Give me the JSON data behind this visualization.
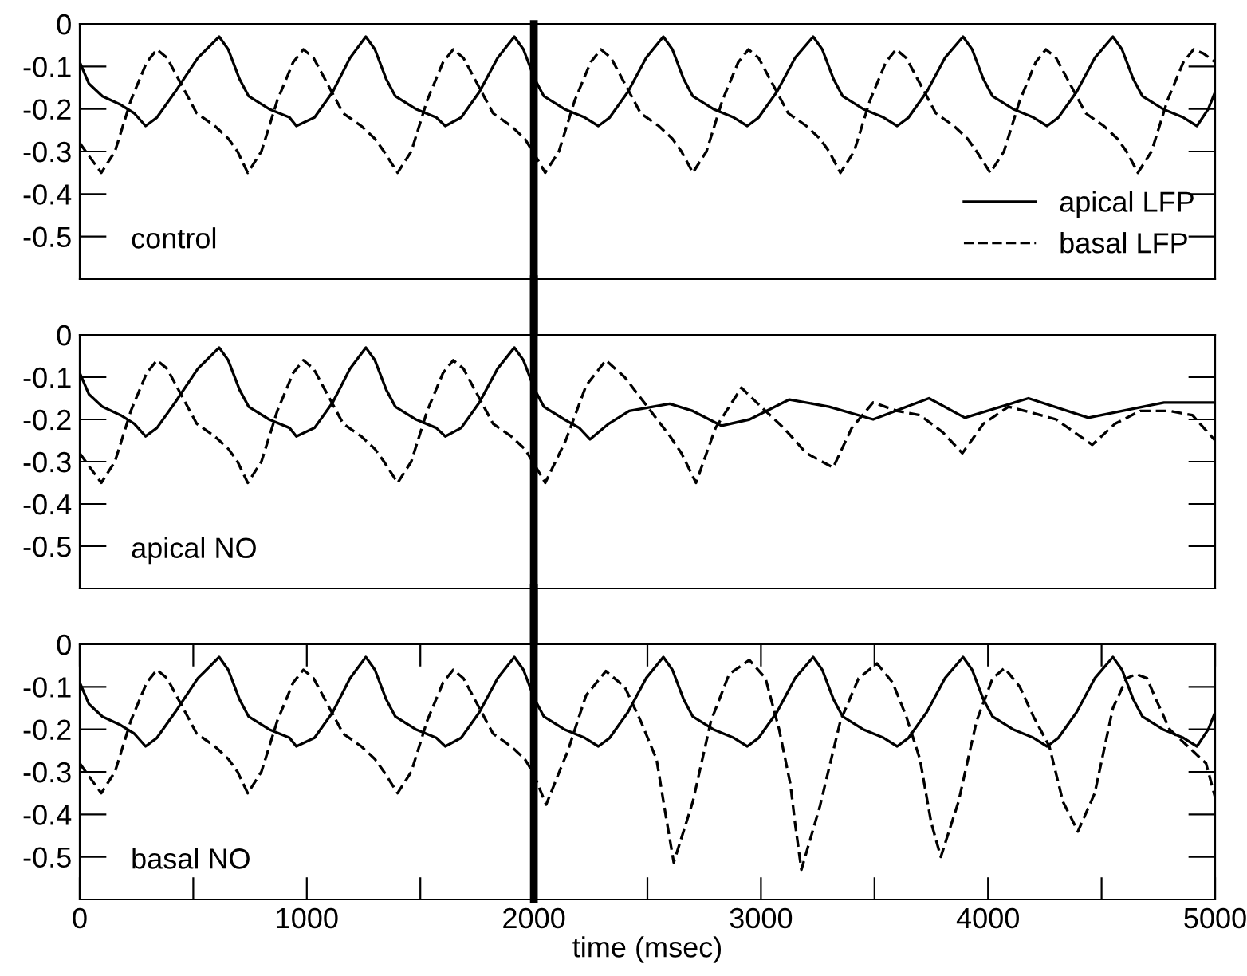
{
  "chart_data": [
    {
      "type": "line",
      "xlim": [
        0,
        5000
      ],
      "ylim": [
        -0.6,
        0
      ],
      "yticks": [
        0,
        -0.1,
        -0.2,
        -0.3,
        -0.4,
        -0.5
      ],
      "tick_labels": "y",
      "legend": "bottom right",
      "annotations": [
        "control"
      ],
      "ref_lines": [
        {
          "axis": "x",
          "value": 2000,
          "color": "#000000"
        }
      ],
      "series": [
        {
          "name": "apical LFP",
          "color": "#000000",
          "line_style": "solid",
          "x": [
            0,
            40,
            100,
            180,
            240,
            290,
            340,
            420,
            520,
            614,
            654,
            704,
            744,
            834,
            924,
            954,
            1034,
            1114,
            1190,
            1260,
            1300,
            1350,
            1390,
            1480,
            1570,
            1610,
            1680,
            1760,
            1840,
            1914,
            1954,
            2004,
            2044,
            2134,
            2224,
            2284,
            2334,
            2414,
            2494,
            2570,
            2610,
            2660,
            2700,
            2790,
            2880,
            2940,
            2990,
            3070,
            3150,
            3230,
            3270,
            3320,
            3360,
            3450,
            3540,
            3600,
            3650,
            3730,
            3810,
            3890,
            3930,
            3980,
            4020,
            4110,
            4200,
            4260,
            4310,
            4390,
            4470,
            4550,
            4590,
            4640,
            4680,
            4770,
            4860,
            4920,
            4970,
            5000
          ],
          "values": [
            -0.09,
            -0.14,
            -0.17,
            -0.19,
            -0.21,
            -0.24,
            -0.22,
            -0.16,
            -0.08,
            -0.03,
            -0.06,
            -0.13,
            -0.17,
            -0.2,
            -0.22,
            -0.24,
            -0.22,
            -0.16,
            -0.08,
            -0.03,
            -0.06,
            -0.13,
            -0.17,
            -0.2,
            -0.22,
            -0.24,
            -0.22,
            -0.16,
            -0.08,
            -0.03,
            -0.06,
            -0.13,
            -0.17,
            -0.2,
            -0.22,
            -0.24,
            -0.22,
            -0.16,
            -0.08,
            -0.03,
            -0.06,
            -0.13,
            -0.17,
            -0.2,
            -0.22,
            -0.24,
            -0.22,
            -0.16,
            -0.08,
            -0.03,
            -0.06,
            -0.13,
            -0.17,
            -0.2,
            -0.22,
            -0.24,
            -0.22,
            -0.16,
            -0.08,
            -0.03,
            -0.06,
            -0.13,
            -0.17,
            -0.2,
            -0.22,
            -0.24,
            -0.22,
            -0.16,
            -0.08,
            -0.03,
            -0.06,
            -0.13,
            -0.17,
            -0.2,
            -0.22,
            -0.24,
            -0.2,
            -0.16
          ]
        },
        {
          "name": "basal LFP",
          "color": "#000000",
          "line_style": "dashed",
          "x": [
            0,
            40,
            95,
            155,
            225,
            295,
            340,
            385,
            455,
            515,
            595,
            655,
            695,
            740,
            800,
            870,
            940,
            985,
            1030,
            1100,
            1160,
            1240,
            1300,
            1340,
            1400,
            1460,
            1530,
            1600,
            1645,
            1690,
            1760,
            1820,
            1900,
            1960,
            1995,
            2050,
            2110,
            2180,
            2250,
            2295,
            2340,
            2410,
            2470,
            2550,
            2610,
            2650,
            2700,
            2760,
            2830,
            2900,
            2945,
            2990,
            3060,
            3120,
            3200,
            3260,
            3300,
            3350,
            3410,
            3480,
            3550,
            3595,
            3640,
            3710,
            3770,
            3850,
            3910,
            3950,
            4010,
            4070,
            4140,
            4210,
            4255,
            4300,
            4370,
            4430,
            4510,
            4570,
            4610,
            4660,
            4720,
            4790,
            4860,
            4905,
            4950,
            5000
          ],
          "values": [
            -0.28,
            -0.31,
            -0.35,
            -0.3,
            -0.18,
            -0.09,
            -0.06,
            -0.08,
            -0.15,
            -0.21,
            -0.24,
            -0.27,
            -0.3,
            -0.35,
            -0.3,
            -0.18,
            -0.09,
            -0.06,
            -0.08,
            -0.15,
            -0.21,
            -0.24,
            -0.27,
            -0.3,
            -0.35,
            -0.3,
            -0.18,
            -0.09,
            -0.06,
            -0.08,
            -0.15,
            -0.21,
            -0.24,
            -0.27,
            -0.3,
            -0.35,
            -0.3,
            -0.18,
            -0.09,
            -0.06,
            -0.08,
            -0.15,
            -0.21,
            -0.24,
            -0.27,
            -0.3,
            -0.35,
            -0.3,
            -0.18,
            -0.09,
            -0.06,
            -0.08,
            -0.15,
            -0.21,
            -0.24,
            -0.27,
            -0.3,
            -0.35,
            -0.3,
            -0.18,
            -0.09,
            -0.06,
            -0.08,
            -0.15,
            -0.21,
            -0.24,
            -0.27,
            -0.3,
            -0.35,
            -0.3,
            -0.18,
            -0.09,
            -0.06,
            -0.08,
            -0.15,
            -0.21,
            -0.24,
            -0.27,
            -0.3,
            -0.35,
            -0.3,
            -0.18,
            -0.09,
            -0.06,
            -0.07,
            -0.09
          ]
        }
      ]
    },
    {
      "type": "line",
      "xlim": [
        0,
        5000
      ],
      "ylim": [
        -0.6,
        0
      ],
      "yticks": [
        0,
        -0.1,
        -0.2,
        -0.3,
        -0.4,
        -0.5
      ],
      "tick_labels": "y",
      "annotations": [
        "apical NO"
      ],
      "ref_lines": [
        {
          "axis": "x",
          "value": 2000,
          "color": "#000000"
        }
      ],
      "series": [
        {
          "color": "#000000",
          "line_style": "solid",
          "x": [
            0,
            40,
            100,
            180,
            240,
            290,
            340,
            420,
            520,
            614,
            654,
            704,
            744,
            834,
            924,
            954,
            1034,
            1114,
            1190,
            1260,
            1300,
            1350,
            1390,
            1480,
            1570,
            1610,
            1680,
            1760,
            1840,
            1914,
            1954,
            2004,
            2044,
            2134,
            2200,
            2247,
            2330,
            2420,
            2598,
            2700,
            2827,
            2950,
            3125,
            3300,
            3494,
            3740,
            3898,
            4178,
            4442,
            4775,
            5000
          ],
          "values": [
            -0.09,
            -0.14,
            -0.17,
            -0.19,
            -0.21,
            -0.24,
            -0.22,
            -0.16,
            -0.08,
            -0.03,
            -0.06,
            -0.13,
            -0.17,
            -0.2,
            -0.22,
            -0.24,
            -0.22,
            -0.16,
            -0.08,
            -0.03,
            -0.06,
            -0.13,
            -0.17,
            -0.2,
            -0.22,
            -0.24,
            -0.22,
            -0.16,
            -0.08,
            -0.03,
            -0.06,
            -0.13,
            -0.17,
            -0.2,
            -0.22,
            -0.247,
            -0.21,
            -0.18,
            -0.163,
            -0.18,
            -0.215,
            -0.2,
            -0.153,
            -0.17,
            -0.2,
            -0.15,
            -0.196,
            -0.15,
            -0.196,
            -0.16,
            -0.16
          ]
        },
        {
          "color": "#000000",
          "line_style": "dashed",
          "x": [
            0,
            40,
            95,
            155,
            225,
            295,
            340,
            385,
            455,
            515,
            595,
            655,
            695,
            740,
            800,
            870,
            940,
            985,
            1030,
            1100,
            1160,
            1240,
            1300,
            1340,
            1400,
            1460,
            1530,
            1600,
            1645,
            1690,
            1760,
            1820,
            1900,
            1960,
            1995,
            2050,
            2140,
            2230,
            2317,
            2400,
            2500,
            2600,
            2650,
            2714,
            2800,
            2914,
            3000,
            3100,
            3200,
            3318,
            3400,
            3494,
            3600,
            3700,
            3800,
            3887,
            3980,
            4090,
            4200,
            4300,
            4459,
            4560,
            4670,
            4800,
            4900,
            5000
          ],
          "values": [
            -0.28,
            -0.31,
            -0.35,
            -0.3,
            -0.18,
            -0.09,
            -0.06,
            -0.08,
            -0.15,
            -0.21,
            -0.24,
            -0.27,
            -0.3,
            -0.35,
            -0.3,
            -0.18,
            -0.09,
            -0.06,
            -0.08,
            -0.15,
            -0.21,
            -0.24,
            -0.27,
            -0.3,
            -0.35,
            -0.3,
            -0.18,
            -0.09,
            -0.06,
            -0.08,
            -0.15,
            -0.21,
            -0.24,
            -0.27,
            -0.3,
            -0.35,
            -0.25,
            -0.12,
            -0.06,
            -0.1,
            -0.17,
            -0.24,
            -0.28,
            -0.35,
            -0.22,
            -0.125,
            -0.17,
            -0.22,
            -0.28,
            -0.314,
            -0.22,
            -0.16,
            -0.18,
            -0.19,
            -0.23,
            -0.28,
            -0.21,
            -0.17,
            -0.185,
            -0.2,
            -0.26,
            -0.21,
            -0.18,
            -0.18,
            -0.19,
            -0.25
          ]
        }
      ]
    },
    {
      "type": "line",
      "xlim": [
        0,
        5000
      ],
      "ylim": [
        -0.6,
        0
      ],
      "yticks": [
        0,
        -0.1,
        -0.2,
        -0.3,
        -0.4,
        -0.5
      ],
      "xticks": [
        0,
        {
          "value": 500,
          "label": null
        },
        1000,
        {
          "value": 1500,
          "label": null
        },
        2000,
        {
          "value": 2500,
          "label": null
        },
        3000,
        {
          "value": 3500,
          "label": null
        },
        4000,
        {
          "value": 4500,
          "label": null
        },
        5000
      ],
      "xlabel": "time (msec)",
      "annotations": [
        "basal NO"
      ],
      "ref_lines": [
        {
          "axis": "x",
          "value": 2000,
          "color": "#000000"
        }
      ],
      "series": [
        {
          "color": "#000000",
          "line_style": "solid",
          "x": [
            0,
            40,
            100,
            180,
            240,
            290,
            340,
            420,
            520,
            614,
            654,
            704,
            744,
            834,
            924,
            954,
            1034,
            1114,
            1190,
            1260,
            1300,
            1350,
            1390,
            1480,
            1570,
            1610,
            1680,
            1760,
            1840,
            1914,
            1954,
            2004,
            2044,
            2134,
            2224,
            2284,
            2334,
            2414,
            2494,
            2570,
            2610,
            2660,
            2700,
            2790,
            2880,
            2940,
            2990,
            3070,
            3150,
            3230,
            3270,
            3320,
            3360,
            3450,
            3540,
            3600,
            3650,
            3730,
            3810,
            3890,
            3930,
            3980,
            4020,
            4110,
            4200,
            4260,
            4310,
            4390,
            4470,
            4550,
            4590,
            4640,
            4680,
            4770,
            4860,
            4920,
            4970,
            5000
          ],
          "values": [
            -0.09,
            -0.14,
            -0.17,
            -0.19,
            -0.21,
            -0.24,
            -0.22,
            -0.16,
            -0.08,
            -0.03,
            -0.06,
            -0.13,
            -0.17,
            -0.2,
            -0.22,
            -0.24,
            -0.22,
            -0.16,
            -0.08,
            -0.03,
            -0.06,
            -0.13,
            -0.17,
            -0.2,
            -0.22,
            -0.24,
            -0.22,
            -0.16,
            -0.08,
            -0.03,
            -0.06,
            -0.13,
            -0.17,
            -0.2,
            -0.22,
            -0.24,
            -0.22,
            -0.16,
            -0.08,
            -0.03,
            -0.06,
            -0.13,
            -0.17,
            -0.2,
            -0.22,
            -0.24,
            -0.22,
            -0.16,
            -0.08,
            -0.03,
            -0.06,
            -0.13,
            -0.17,
            -0.2,
            -0.22,
            -0.24,
            -0.22,
            -0.16,
            -0.08,
            -0.03,
            -0.06,
            -0.13,
            -0.17,
            -0.2,
            -0.22,
            -0.24,
            -0.22,
            -0.16,
            -0.08,
            -0.03,
            -0.06,
            -0.13,
            -0.17,
            -0.2,
            -0.22,
            -0.24,
            -0.2,
            -0.16
          ]
        },
        {
          "color": "#000000",
          "line_style": "dashed",
          "x": [
            0,
            40,
            95,
            155,
            225,
            295,
            340,
            385,
            455,
            515,
            595,
            655,
            695,
            740,
            800,
            870,
            940,
            985,
            1030,
            1100,
            1160,
            1240,
            1300,
            1340,
            1400,
            1460,
            1530,
            1600,
            1645,
            1690,
            1760,
            1820,
            1900,
            1960,
            1995,
            2054,
            2150,
            2230,
            2317,
            2400,
            2470,
            2540,
            2580,
            2616,
            2700,
            2780,
            2860,
            2949,
            3020,
            3080,
            3130,
            3150,
            3178,
            3260,
            3350,
            3430,
            3511,
            3580,
            3640,
            3700,
            3750,
            3792,
            3870,
            3950,
            4020,
            4073,
            4140,
            4200,
            4270,
            4330,
            4396,
            4470,
            4550,
            4610,
            4652,
            4700,
            4740,
            4800,
            4900,
            4960,
            5000
          ],
          "values": [
            -0.28,
            -0.31,
            -0.35,
            -0.3,
            -0.18,
            -0.09,
            -0.06,
            -0.08,
            -0.15,
            -0.21,
            -0.24,
            -0.27,
            -0.3,
            -0.35,
            -0.3,
            -0.18,
            -0.09,
            -0.06,
            -0.08,
            -0.15,
            -0.21,
            -0.24,
            -0.27,
            -0.3,
            -0.35,
            -0.3,
            -0.18,
            -0.09,
            -0.06,
            -0.08,
            -0.15,
            -0.21,
            -0.24,
            -0.27,
            -0.3,
            -0.377,
            -0.25,
            -0.12,
            -0.063,
            -0.1,
            -0.18,
            -0.27,
            -0.4,
            -0.513,
            -0.37,
            -0.18,
            -0.07,
            -0.037,
            -0.08,
            -0.2,
            -0.33,
            -0.42,
            -0.53,
            -0.38,
            -0.18,
            -0.08,
            -0.045,
            -0.09,
            -0.17,
            -0.27,
            -0.42,
            -0.5,
            -0.37,
            -0.18,
            -0.08,
            -0.056,
            -0.1,
            -0.17,
            -0.24,
            -0.37,
            -0.44,
            -0.35,
            -0.15,
            -0.08,
            -0.07,
            -0.08,
            -0.13,
            -0.2,
            -0.25,
            -0.28,
            -0.36
          ]
        }
      ]
    }
  ]
}
